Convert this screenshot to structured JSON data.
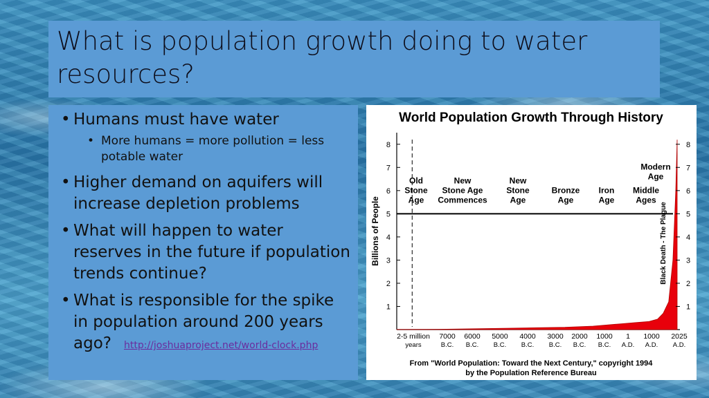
{
  "slide": {
    "title": "What is population growth doing to water resources?"
  },
  "bullets": {
    "b1": "Humans must have water",
    "b1_sub": "More humans = more pollution = less potable water",
    "b2": "Higher demand on aquifers will increase depletion problems",
    "b3": "What will happen to water reserves in the future if population trends continue?",
    "b4": "What is responsible for the spike in population around 200 years ago?",
    "link": "http://joshuaproject.net/world-clock.php"
  },
  "chart_data": {
    "type": "area",
    "title": "World Population Growth Through History",
    "ylabel": "Billions of People",
    "ylim": [
      0,
      8.5
    ],
    "yticks": [
      "1",
      "2",
      "3",
      "4",
      "5",
      "6",
      "7",
      "8"
    ],
    "x_labels": [
      {
        "top": "2-5 million",
        "bottom": "years"
      },
      {
        "top": "7000",
        "bottom": "B.C."
      },
      {
        "top": "6000",
        "bottom": "B.C."
      },
      {
        "top": "5000",
        "bottom": "B.C."
      },
      {
        "top": "4000",
        "bottom": "B.C."
      },
      {
        "top": "3000",
        "bottom": "B.C."
      },
      {
        "top": "2000",
        "bottom": "B.C."
      },
      {
        "top": "1000",
        "bottom": "B.C."
      },
      {
        "top": "1",
        "bottom": "A.D."
      },
      {
        "top": "1000",
        "bottom": "A.D."
      },
      {
        "top": "2025",
        "bottom": "A.D."
      }
    ],
    "eras": [
      {
        "line1": "Old",
        "line2": "Stone",
        "line3": "Age"
      },
      {
        "line1": "New",
        "line2": "Stone Age",
        "line3": "Commences"
      },
      {
        "line1": "New",
        "line2": "Stone",
        "line3": "Age"
      },
      {
        "line1": "Bronze",
        "line2": "Age",
        "line3": ""
      },
      {
        "line1": "Iron",
        "line2": "Age",
        "line3": ""
      },
      {
        "line1": "Middle",
        "line2": "Ages",
        "line3": ""
      },
      {
        "line1": "Modern",
        "line2": "Age",
        "line3": ""
      }
    ],
    "annotation": "Black Death - The Plague",
    "series": [
      {
        "x": [
          0,
          1,
          2,
          3,
          4,
          5,
          6,
          7,
          8,
          8.5,
          9,
          9.3,
          9.5,
          9.7,
          9.85,
          9.95,
          10
        ],
        "values": [
          0.005,
          0.01,
          0.02,
          0.04,
          0.06,
          0.08,
          0.1,
          0.15,
          0.25,
          0.3,
          0.35,
          0.45,
          0.7,
          1.2,
          3.0,
          6.0,
          8.2
        ]
      }
    ],
    "source_line1": "From \"World Population: Toward the Next Century,\" copyright 1994",
    "source_line2": "by the Population Reference Bureau",
    "colors": {
      "fill": "#e8000b",
      "axis": "#000000"
    }
  }
}
